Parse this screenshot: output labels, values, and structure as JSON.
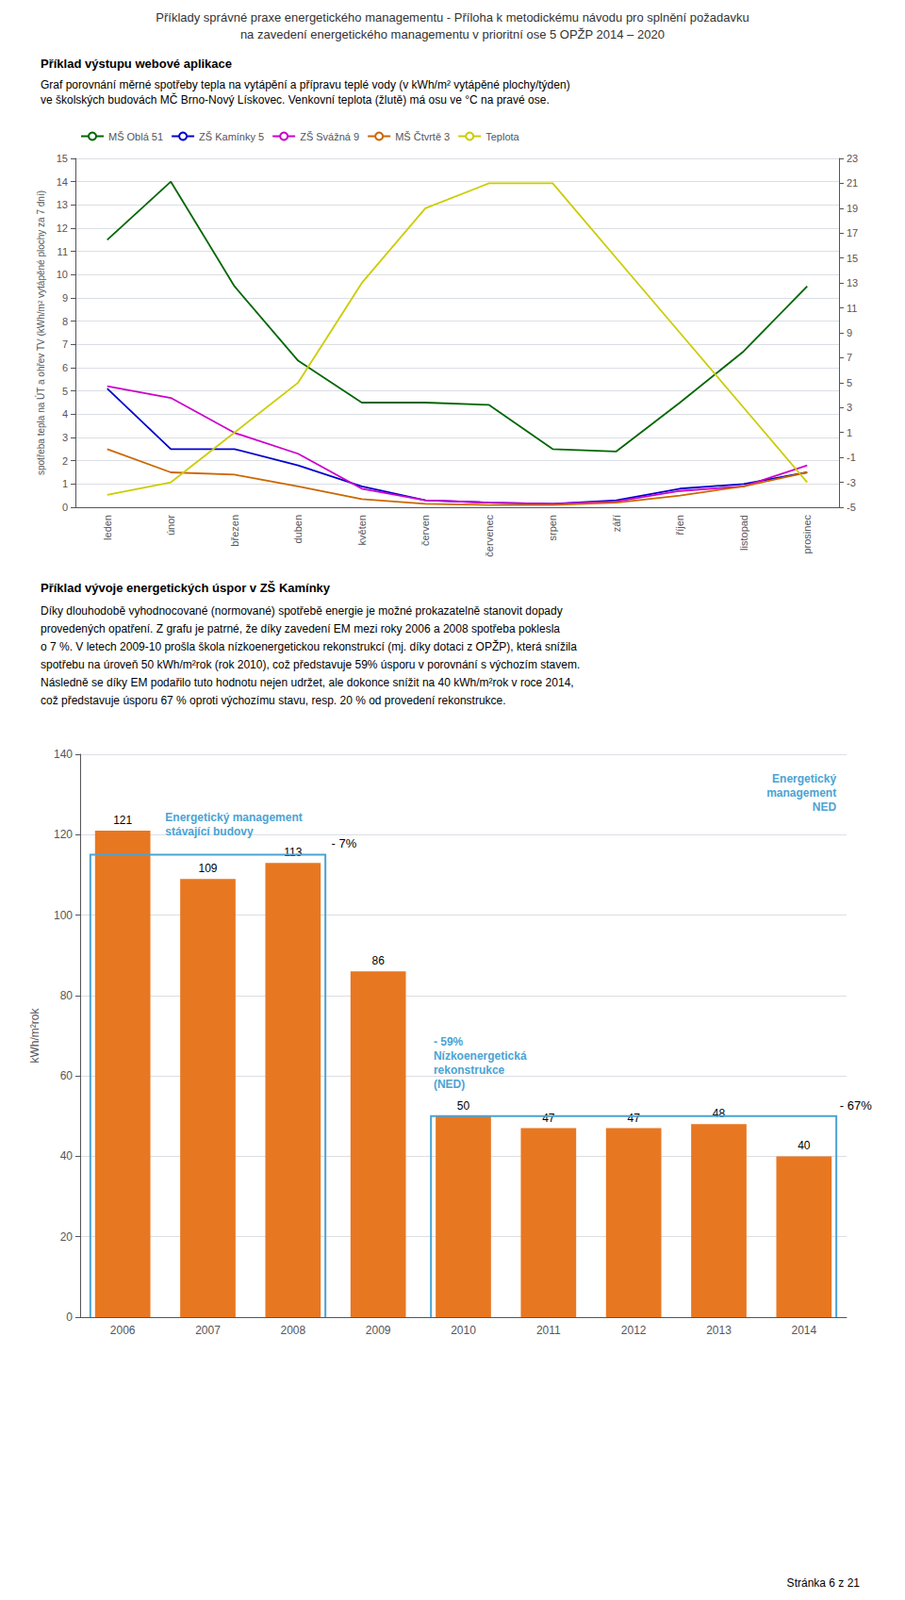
{
  "header": [
    "Příklady správné praxe energetického managementu - Příloha k metodickému návodu pro splnění požadavku",
    "na zavedení energetického managementu v prioritní ose 5 OPŽP 2014 – 2020"
  ],
  "chart_data": [
    {
      "type": "line",
      "title": "Příklad výstupu webové aplikace",
      "subtitle": "Graf porovnání měrné spotřeby tepla na vytápění a přípravu teplé vody (v kWh/m² vytápěné plochy/týden)\nve školských budovách MČ Brno-Nový Lískovec. Venkovní teplota (žlutě) má osu ve °C na pravé ose.",
      "categories": [
        "leden",
        "únor",
        "březen",
        "duben",
        "květen",
        "červen",
        "červenec",
        "srpen",
        "září",
        "říjen",
        "listopad",
        "prosinec"
      ],
      "series": [
        {
          "name": "MŠ Oblá 51",
          "color": "#006600",
          "values": [
            11.5,
            14.0,
            9.5,
            6.3,
            4.5,
            4.5,
            4.4,
            2.5,
            2.4,
            4.5,
            6.7,
            9.5
          ]
        },
        {
          "name": "ZŠ Kamínky 5",
          "color": "#0000CC",
          "values": [
            5.1,
            2.5,
            2.5,
            1.8,
            0.9,
            0.3,
            0.2,
            0.15,
            0.3,
            0.8,
            1.0,
            1.5
          ]
        },
        {
          "name": "ZŠ Svážná 9",
          "color": "#CC00CC",
          "values": [
            5.2,
            4.7,
            3.2,
            2.3,
            0.8,
            0.3,
            0.2,
            0.15,
            0.25,
            0.7,
            0.9,
            1.8
          ]
        },
        {
          "name": "MŠ Čtvrtě 3",
          "color": "#CC6600",
          "values": [
            2.5,
            1.5,
            1.4,
            0.9,
            0.35,
            0.15,
            0.1,
            0.1,
            0.2,
            0.5,
            0.9,
            1.5
          ]
        },
        {
          "name": "Teplota",
          "color": "#CCCC00",
          "axis": "y2",
          "values": [
            -4,
            -3,
            1,
            5,
            13,
            19,
            21,
            21,
            15,
            9,
            3,
            -3
          ]
        }
      ],
      "ylabel": "spotřeba tepla na ÚT a ohřev TV (kWh/m² vytápěné plochy za 7 dní)",
      "ylim": [
        0,
        15
      ],
      "yticks": [
        0,
        1,
        2,
        3,
        4,
        5,
        6,
        7,
        8,
        9,
        10,
        11,
        12,
        13,
        14,
        15
      ],
      "y2lim": [
        -5,
        23
      ],
      "y2ticks": [
        -5,
        -3,
        -1,
        1,
        3,
        5,
        7,
        9,
        11,
        13,
        15,
        17,
        19,
        21,
        23
      ],
      "grid": true,
      "legend": "upper left"
    },
    {
      "type": "bar",
      "title": "Příklad vývoje energetických úspor v ZŠ Kamínky",
      "subtitle": "Díky dlouhodobě vyhodnocované (normované) spotřebě energie je možné prokazatelně stanovit dopady\nprovedených opatření. Z grafu je patrné, že díky zavedení EM mezi roky 2006 a 2008 spotřeba poklesla\no 7 %. V letech 2009-10 prošla škola nízkoenergetickou rekonstrukcí (mj. díky dotaci z OPŽP), která snížila\nspotřebu na úroveň 50 kWh/m²rok (rok 2010), což představuje 59% úsporu v porovnání s výchozím stavem.\nNásledně se díky EM podařilo tuto hodnotu nejen udržet, ale dokonce snížit na 40 kWh/m²rok v roce 2014,\ncož představuje úsporu 67 % oproti výchozímu stavu, resp. 20 % od provedení rekonstrukce.",
      "categories": [
        "2006",
        "2007",
        "2008",
        "2009",
        "2010",
        "2011",
        "2012",
        "2013",
        "2014"
      ],
      "values": [
        121,
        109,
        113,
        86,
        50,
        47,
        47,
        48,
        40
      ],
      "color": "#E87722",
      "ylabel": "kWh/m²rok",
      "ylim": [
        0,
        140
      ],
      "yticks": [
        0,
        20,
        40,
        60,
        80,
        100,
        120,
        140
      ],
      "grid": true,
      "data_labels": true,
      "brackets": [
        {
          "from": "2006",
          "to": "2008",
          "y": 115,
          "color": "#4BA3D3"
        },
        {
          "from": "2010",
          "to": "2014",
          "y": 50,
          "color": "#4BA3D3"
        }
      ],
      "annotations": [
        {
          "text": "Energetický management\nstávající budovy",
          "x": "2006",
          "y": 118,
          "color": "#4BA3D3"
        },
        {
          "text": "- 7%",
          "x": "2008",
          "y": 116
        },
        {
          "text": "- 59%\nNízkoenergetická\nrekonstrukce\n(NED)",
          "x": "2010",
          "y": 51,
          "color": "#4BA3D3"
        },
        {
          "text": "- 67%",
          "x": "2014",
          "y": 51
        },
        {
          "text": "Energetický\nmanagement\nNED",
          "x": "2014",
          "y": 125,
          "color": "#4BA3D3"
        }
      ]
    }
  ],
  "footer": "Stránka 6 z 21"
}
